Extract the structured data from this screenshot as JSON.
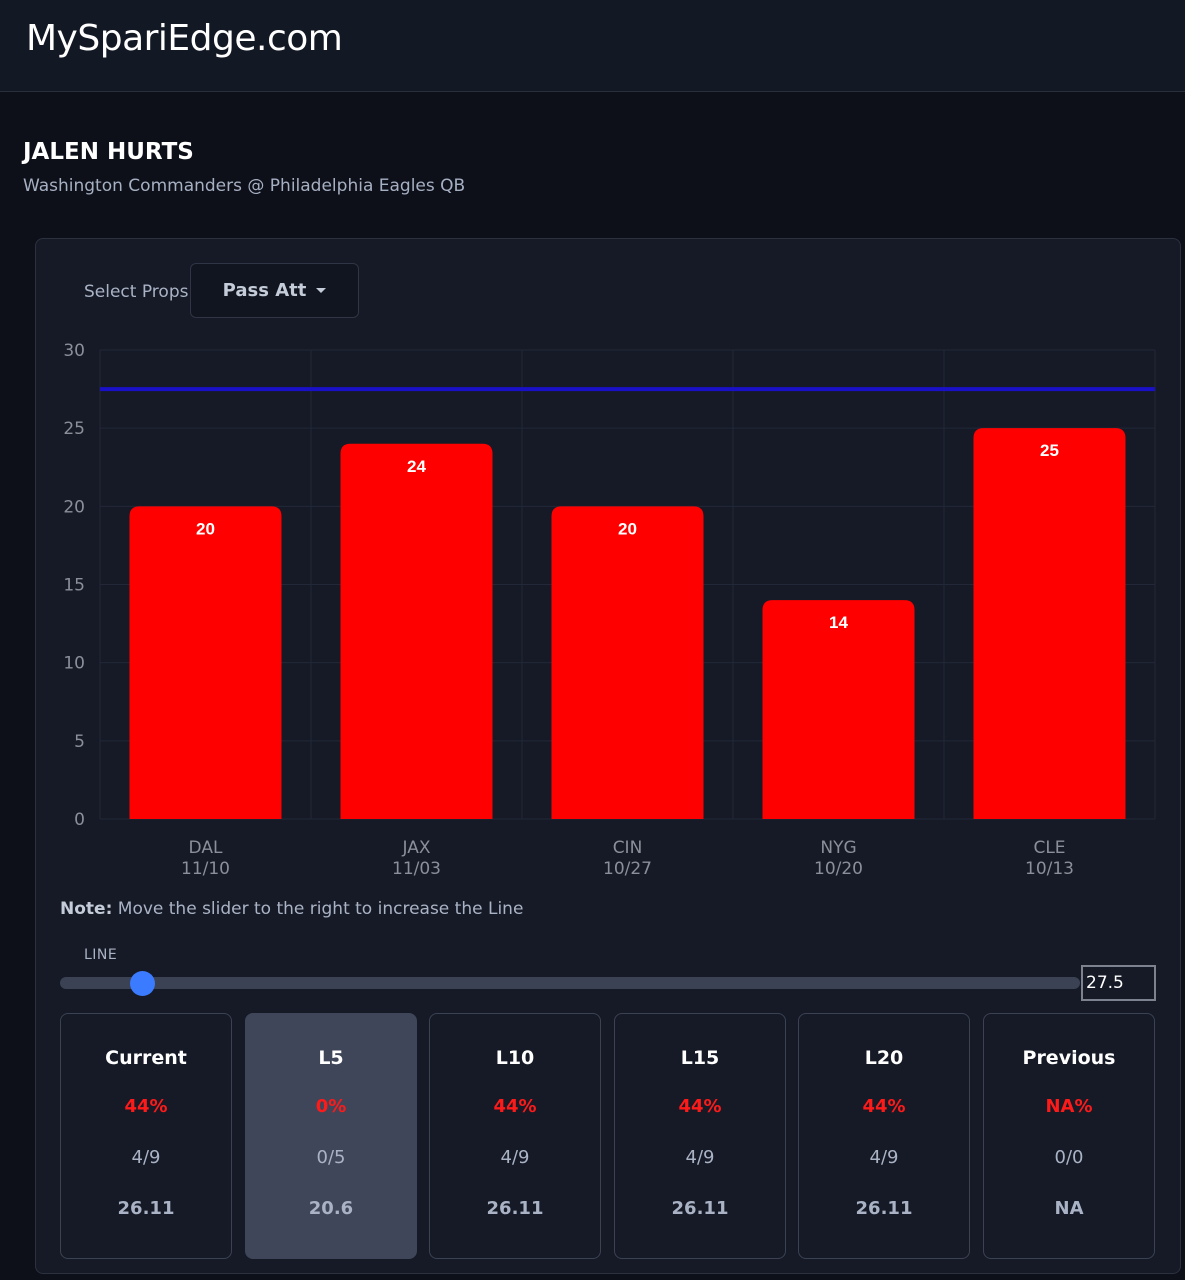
{
  "site": {
    "brand": "MySpariEdge.com"
  },
  "player": {
    "name": "JALEN HURTS",
    "subtitle": "Washington Commanders @ Philadelphia Eagles QB"
  },
  "props": {
    "label": "Select Props",
    "selected": "Pass Att"
  },
  "chart_data": {
    "type": "bar",
    "categories": [
      "DAL",
      "JAX",
      "CIN",
      "NYG",
      "CLE"
    ],
    "dates": [
      "11/10",
      "11/03",
      "10/27",
      "10/20",
      "10/13"
    ],
    "values": [
      20,
      24,
      20,
      14,
      25
    ],
    "ylim": [
      0,
      30
    ],
    "yticks": [
      0,
      5,
      10,
      15,
      20,
      25,
      30
    ],
    "line_value": 27.5,
    "title": "",
    "xlabel": "",
    "ylabel": "",
    "grid": true,
    "colors": {
      "bar": "#ff0000",
      "line": "#1a10c8",
      "bar_label": "#ffffff",
      "tick": "#8a8f99",
      "grid": "#222838"
    }
  },
  "note": {
    "bold": "Note:",
    "text": " Move the slider to the right to increase the Line"
  },
  "slider": {
    "label": "LINE",
    "value": "27.5",
    "level_fraction": 0.08,
    "color": "#3b7bff"
  },
  "cards": [
    {
      "title": "Current",
      "pct": "44%",
      "frac": "4/9",
      "avg": "26.11"
    },
    {
      "title": "L5",
      "pct": "0%",
      "frac": "0/5",
      "avg": "20.6"
    },
    {
      "title": "L10",
      "pct": "44%",
      "frac": "4/9",
      "avg": "26.11"
    },
    {
      "title": "L15",
      "pct": "44%",
      "frac": "4/9",
      "avg": "26.11"
    },
    {
      "title": "L20",
      "pct": "44%",
      "frac": "4/9",
      "avg": "26.11"
    },
    {
      "title": "Previous",
      "pct": "NA%",
      "frac": "0/0",
      "avg": "NA"
    }
  ],
  "active_card": "L5"
}
